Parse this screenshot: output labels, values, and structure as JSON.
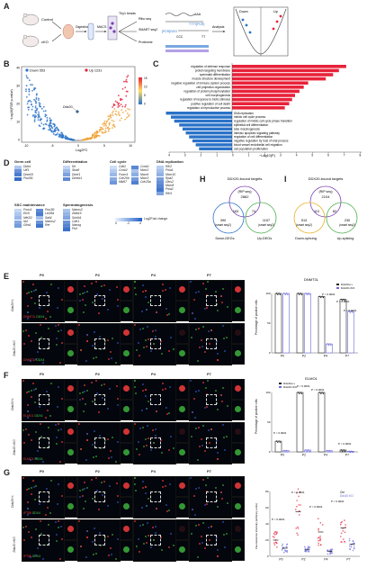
{
  "panelA": {
    "label": "A",
    "mouse_labels": [
      "Control",
      "cKO"
    ],
    "steps": [
      "Digestion",
      "MACS",
      "Ribo seq",
      "SMART seq2",
      "Proteome",
      "Analysis"
    ],
    "beads": "Thy1 beads",
    "seq_aaa": "AAA",
    "pcr1": "TTTT[PCR]",
    "pcr2": "[PCR]GGG",
    "ccc": "CCC",
    "tt": "TT",
    "down": "Down",
    "up": "Up"
  },
  "panelB": {
    "label": "B",
    "legend_down": "Down 553",
    "legend_up": "Up 1231",
    "ylabel": "−Log10(FDR p-value)",
    "xlabel": "Log2FC",
    "gene_label": "Ddx20",
    "yticks": [
      "0",
      "10",
      "20",
      "30",
      "40"
    ],
    "xticks": [
      "-10",
      "-5",
      "0",
      "5",
      "10"
    ],
    "colorbar_ticks": [
      "15",
      "10",
      "5",
      "0"
    ]
  },
  "panelC": {
    "label": "C",
    "xlabel": "−Log10(P)",
    "xticks": [
      "4",
      "3",
      "2",
      "1",
      "0",
      "1",
      "2",
      "3",
      "4",
      "5",
      "6",
      "7",
      "8"
    ],
    "up_terms": [
      {
        "term": "regulation of defense response",
        "value": 7.8
      },
      {
        "term": "protein targeting membrane",
        "value": 7.3
      },
      {
        "term": "spermatid differentiation",
        "value": 6.9
      },
      {
        "term": "muscle structure development",
        "value": 6.4
      },
      {
        "term": "negative regulation of immune system process",
        "value": 5.2
      },
      {
        "term": "cell projection organization",
        "value": 4.9
      },
      {
        "term": "regulation of protein phosphorylation",
        "value": 4.6
      },
      {
        "term": "cell morphogenesis",
        "value": 4.3
      },
      {
        "term": "regulation of response to biotic stimulus",
        "value": 4.1
      },
      {
        "term": "positive regulation of cell death",
        "value": 3.9
      },
      {
        "term": "regulation of reproductive process",
        "value": 3.6
      }
    ],
    "down_terms": [
      {
        "term": "DNA replication",
        "value": 4.0
      },
      {
        "term": "mitotic cell cycle process",
        "value": 3.7
      },
      {
        "term": "regulation of mitotic cell cycle phase transition",
        "value": 3.5
      },
      {
        "term": "epithelial cell differentiation",
        "value": 3.2
      },
      {
        "term": "tube morphogenesis",
        "value": 3.0
      },
      {
        "term": "intrinsic apoptotic signaling pathway",
        "value": 2.8
      },
      {
        "term": "regulation of cell differentiation",
        "value": 2.6
      },
      {
        "term": "negative regulation by host of viral process",
        "value": 2.4
      },
      {
        "term": "blood vessel endothelial cell migration",
        "value": 2.2
      },
      {
        "term": "cell population proliferation",
        "value": 2.0
      }
    ]
  },
  "panelD": {
    "label": "D",
    "groups": [
      {
        "title": "Germ cell",
        "genes": [
          "Ddx4",
          "Utf1",
          "Dnmt3l",
          "Pou5f1"
        ],
        "vals": [
          -1.2,
          -2.6,
          -3.2,
          -3.6
        ]
      },
      {
        "title": "Differentiation",
        "genes": [
          "Kit",
          "Stra8",
          "Dmrt1",
          "Dmrtb1"
        ],
        "vals": [
          -0.8,
          -1.5,
          -2.2,
          -2.8
        ]
      },
      {
        "title": "Cell cycle",
        "genes": [
          "Cdk1",
          "Ccnb2",
          "Foxm1",
          "Cdc20b",
          "Mki67",
          "Ccnb1",
          "Mcm2",
          "Mcm6",
          "Mcm3",
          "Cdc25a"
        ],
        "vals": [
          -0.6,
          -1.1,
          -1.6,
          -2.0,
          -2.5,
          -2.9,
          -1.3,
          -1.9,
          -2.4,
          -3.1
        ]
      },
      {
        "title": "DNA replication",
        "genes": [
          "Rfc2",
          "Pola1",
          "Mcm10",
          "Rpa2",
          "Gins2",
          "Mcm8",
          "Pola2",
          "Rfc5"
        ],
        "vals": [
          -1.0,
          -1.4,
          -1.8,
          -2.3,
          -2.7,
          -3.0,
          -3.4,
          -2.1
        ]
      },
      {
        "title": "SSC maintenance",
        "genes": [
          "Foxo1",
          "Etv5",
          "Nfe2l2",
          "Id4",
          "Gfra1",
          "Pou3f1",
          "Lin28a",
          "Sall4",
          "Nanos2",
          "Ret"
        ],
        "vals": [
          -0.8,
          -1.2,
          -1.6,
          -2.0,
          -2.4,
          -2.8,
          -3.2,
          -1.4,
          -2.6,
          -3.4
        ]
      },
      {
        "title": "Spermatogenesis",
        "genes": [
          "Nanos3",
          "Zbtb16",
          "Sohlh1",
          "Cdh1",
          "Nanog",
          "Plzf"
        ],
        "vals": [
          -1.3,
          -1.7,
          -2.1,
          -2.6,
          -3.0,
          -3.5
        ]
      }
    ],
    "legend_ticks": [
      "0",
      "-2",
      "-4"
    ],
    "legend_label": "Log2Fold change"
  },
  "panelH": {
    "label": "H",
    "title": "DDX20-bound targets",
    "subtitle": "(RIP seq)",
    "total": "2862",
    "left_label": "Down-DEGs",
    "right_label": "Up-DEGs",
    "left_only": "390",
    "left_sub": "(smart seq2)",
    "right_only": "1157",
    "right_sub": "(smart seq2)",
    "overlap_left": "163",
    "overlap_right": "74"
  },
  "panelI": {
    "label": "I",
    "title": "DDX20-bound targets",
    "subtitle": "(RIP seq)",
    "total": "2104",
    "left_label": "Down-splicing",
    "right_label": "Up-splicing",
    "left_only": "513",
    "left_sub": "(smart seq2)",
    "right_only": "230",
    "right_sub": "(smart seq2)",
    "overlap_left": "110",
    "overlap_right": "82"
  },
  "panelE": {
    "label": "E",
    "stages": [
      "P0",
      "P2",
      "P4",
      "P7"
    ],
    "rows": [
      "Ddx20+/-",
      "Ddx20 cKO"
    ],
    "stain": "DNMT3L",
    "counter": "DDX4",
    "chart_title": "DNMT3L",
    "legend": [
      "Ddx20+/+",
      "Ddx20 cKO"
    ],
    "ylabel": "Percentage of positive cells",
    "pvals": [
      "P < 0.0001",
      "P < 0.0001",
      "P < 0.0001"
    ]
  },
  "panelF": {
    "label": "F",
    "stages": [
      "P0",
      "P2",
      "P4",
      "P7"
    ],
    "rows": [
      "Ddx20+/-",
      "Ddx20 cKO"
    ],
    "stain": "ELMO1",
    "counter": "DDX4",
    "chart_title": "ELMO1",
    "legend": [
      "Ddx20+/+",
      "Ddx20 cKO"
    ],
    "ylabel": "Percentage of positive cells",
    "pvals": [
      "P < 0.0001",
      "P < 0.0001",
      "P < 0.0001",
      "P < 0.0001"
    ]
  },
  "panelG": {
    "label": "G",
    "stages": [
      "P0",
      "P2",
      "P4",
      "P7"
    ],
    "rows": [
      "Ddx20+/-",
      "Ddx20 cKO"
    ],
    "stain": "IFT88",
    "counter": "DDX4",
    "legend_title": "Ctrl",
    "legend_ko": "Ddx20 KO",
    "ylabel": "Fluorescence intensity (arbitrary units)",
    "pvals": [
      "P < 0.0001",
      "P < 0.0001",
      "P < 0.0001",
      "P < 0.0001"
    ]
  },
  "chart_data": [
    {
      "type": "bar",
      "title": "DNMT3L",
      "categories": [
        "P0",
        "P2",
        "P4",
        "P7"
      ],
      "series": [
        {
          "name": "Ddx20+/+",
          "values": [
            100,
            100,
            95,
            90
          ]
        },
        {
          "name": "Ddx20 cKO",
          "values": [
            100,
            100,
            15,
            70
          ]
        }
      ],
      "ylim": [
        0,
        100
      ],
      "colors": {
        "ctrl": "#222222",
        "ko": "#6b6bdd"
      }
    },
    {
      "type": "bar",
      "title": "ELMO1",
      "categories": [
        "P0",
        "P2",
        "P4",
        "P7"
      ],
      "series": [
        {
          "name": "Ddx20+/+",
          "values": [
            18,
            100,
            100,
            3
          ]
        },
        {
          "name": "Ddx20 cKO",
          "values": [
            2,
            3,
            2,
            1
          ]
        }
      ],
      "ylim": [
        0,
        100
      ]
    },
    {
      "type": "scatter",
      "title": "",
      "categories": [
        "P0",
        "P2",
        "P4",
        "P7"
      ],
      "series": [
        {
          "name": "Ctrl",
          "values": [
            20,
            55,
            30,
            35
          ]
        },
        {
          "name": "Ddx20 KO",
          "values": [
            10,
            8,
            6,
            15
          ]
        }
      ],
      "ylim": [
        0,
        80
      ]
    }
  ],
  "colors": {
    "up": "#e8223a",
    "down": "#2a72c8",
    "ko": "#6b6bdd",
    "ctrl": "#222222"
  }
}
